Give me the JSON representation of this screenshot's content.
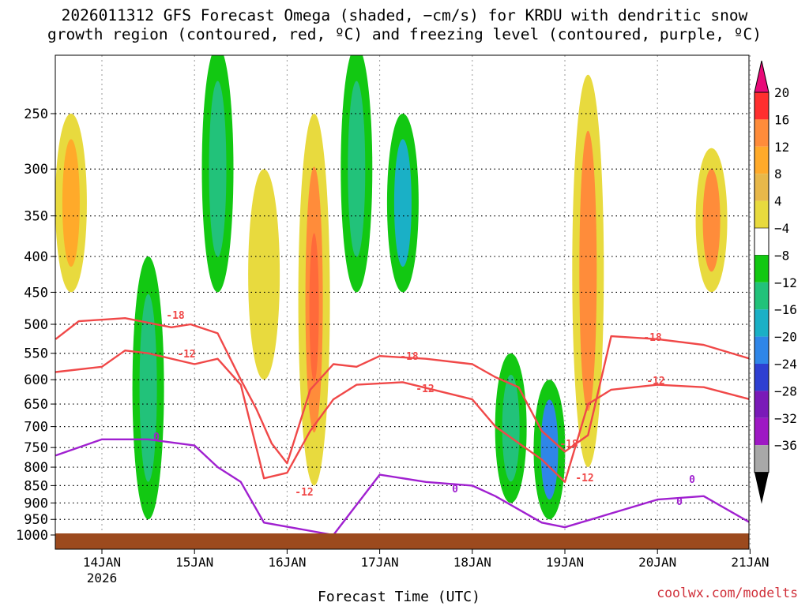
{
  "title_line1": "2026011312 GFS Forecast Omega (shaded, −cm/s) for KRDU with dendritic snow",
  "title_line2": "growth region (contoured, red, ºC) and freezing level (contoured, purple, ºC)",
  "credit": "coolwx.com/modelts",
  "chart_data": {
    "type": "heatmap",
    "title": "2026011312 GFS Forecast Omega (shaded, −cm/s) for KRDU with dendritic snow growth region (contoured, red, ºC) and freezing level (contoured, purple, ºC)",
    "xlabel": "Forecast Time (UTC)",
    "ylabel": "",
    "x_ticks": [
      "14JAN",
      "15JAN",
      "16JAN",
      "17JAN",
      "18JAN",
      "19JAN",
      "20JAN",
      "21JAN"
    ],
    "x_tick_sub": "2026",
    "y_ticks": [
      250,
      300,
      350,
      400,
      450,
      500,
      550,
      600,
      650,
      700,
      750,
      800,
      850,
      900,
      950,
      1000
    ],
    "y_scale": "log-pressure (inverted)",
    "grid": true,
    "colorbar": {
      "labels": [
        "20",
        "16",
        "12",
        "8",
        "4",
        "−4",
        "−8",
        "−12",
        "−16",
        "−20",
        "−24",
        "−28",
        "−32",
        "−36"
      ],
      "colors": [
        "#ff2f2f",
        "#ff8c3a",
        "#ffaa2a",
        "#e8b84a",
        "#e8da3e",
        "#ffffff",
        "#12c812",
        "#22c27a",
        "#1ab0c6",
        "#2f86e8",
        "#2e3fd2",
        "#7a1ab8",
        "#9e18c4",
        "#a8a8a8"
      ],
      "top_color": "#e80a78",
      "bottom_color": "#000000"
    },
    "shaded_regions": [
      {
        "time": "13JAN 16Z",
        "p_top": 250,
        "p_bot": 450,
        "value": 8
      },
      {
        "time": "14JAN 12Z",
        "p_top": 400,
        "p_bot": 950,
        "value": -10
      },
      {
        "time": "15JAN 06Z",
        "p_top": 200,
        "p_bot": 450,
        "value": -8
      },
      {
        "time": "15JAN 18Z",
        "p_top": 300,
        "p_bot": 600,
        "value": 6
      },
      {
        "time": "16JAN 07Z",
        "p_top": 250,
        "p_bot": 850,
        "value": 14
      },
      {
        "time": "16JAN 18Z",
        "p_top": 200,
        "p_bot": 450,
        "value": -8
      },
      {
        "time": "17JAN 06Z",
        "p_top": 250,
        "p_bot": 450,
        "value": -12
      },
      {
        "time": "18JAN 10Z",
        "p_top": 550,
        "p_bot": 900,
        "value": -10
      },
      {
        "time": "18JAN 20Z",
        "p_top": 600,
        "p_bot": 950,
        "value": -18
      },
      {
        "time": "19JAN 06Z",
        "p_top": 220,
        "p_bot": 800,
        "value": 12
      },
      {
        "time": "20JAN 14Z",
        "p_top": 280,
        "p_bot": 450,
        "value": 12
      }
    ],
    "contours": [
      {
        "name": "-18",
        "color": "#f04848",
        "points": [
          [
            "13JAN 12Z",
            525
          ],
          [
            "13JAN 18Z",
            495
          ],
          [
            "14JAN 06Z",
            490
          ],
          [
            "14JAN 18Z",
            505
          ],
          [
            "14JAN 23Z",
            500
          ],
          [
            "15JAN 06Z",
            515
          ],
          [
            "15JAN 12Z",
            600
          ],
          [
            "15JAN 16Z",
            660
          ],
          [
            "15JAN 20Z",
            740
          ],
          [
            "16JAN 00Z",
            790
          ],
          [
            "16JAN 06Z",
            620
          ],
          [
            "16JAN 12Z",
            570
          ],
          [
            "16JAN 18Z",
            575
          ],
          [
            "17JAN 00Z",
            555
          ],
          [
            "17JAN 12Z",
            560
          ],
          [
            "18JAN 00Z",
            570
          ],
          [
            "18JAN 06Z",
            595
          ],
          [
            "18JAN 12Z",
            615
          ],
          [
            "18JAN 18Z",
            710
          ],
          [
            "19JAN 00Z",
            760
          ],
          [
            "19JAN 06Z",
            720
          ],
          [
            "19JAN 12Z",
            520
          ],
          [
            "20JAN 00Z",
            525
          ],
          [
            "20JAN 12Z",
            535
          ],
          [
            "21JAN 00Z",
            560
          ]
        ]
      },
      {
        "name": "-12",
        "color": "#f04848",
        "points": [
          [
            "13JAN 12Z",
            585
          ],
          [
            "14JAN 00Z",
            575
          ],
          [
            "14JAN 06Z",
            545
          ],
          [
            "14JAN 12Z",
            550
          ],
          [
            "15JAN 00Z",
            570
          ],
          [
            "15JAN 06Z",
            560
          ],
          [
            "15JAN 12Z",
            610
          ],
          [
            "15JAN 18Z",
            830
          ],
          [
            "16JAN 00Z",
            815
          ],
          [
            "16JAN 06Z",
            710
          ],
          [
            "16JAN 12Z",
            640
          ],
          [
            "16JAN 18Z",
            610
          ],
          [
            "17JAN 06Z",
            605
          ],
          [
            "18JAN 00Z",
            640
          ],
          [
            "18JAN 06Z",
            700
          ],
          [
            "18JAN 18Z",
            780
          ],
          [
            "19JAN 00Z",
            840
          ],
          [
            "19JAN 06Z",
            650
          ],
          [
            "19JAN 12Z",
            620
          ],
          [
            "20JAN 00Z",
            610
          ],
          [
            "20JAN 12Z",
            615
          ],
          [
            "21JAN 00Z",
            640
          ]
        ]
      },
      {
        "name": "0",
        "color": "#a020d0",
        "points": [
          [
            "13JAN 12Z",
            770
          ],
          [
            "14JAN 00Z",
            730
          ],
          [
            "14JAN 12Z",
            730
          ],
          [
            "15JAN 00Z",
            745
          ],
          [
            "15JAN 06Z",
            800
          ],
          [
            "15JAN 12Z",
            840
          ],
          [
            "15JAN 18Z",
            960
          ],
          [
            "16JAN 12Z",
            1000
          ],
          [
            "17JAN 00Z",
            820
          ],
          [
            "17JAN 12Z",
            840
          ],
          [
            "18JAN 00Z",
            850
          ],
          [
            "18JAN 06Z",
            880
          ],
          [
            "18JAN 18Z",
            960
          ],
          [
            "19JAN 00Z",
            975
          ],
          [
            "20JAN 00Z",
            890
          ],
          [
            "20JAN 12Z",
            880
          ],
          [
            "21JAN 00Z",
            960
          ]
        ]
      }
    ],
    "contour_labels": [
      "-18",
      "-12",
      "-12",
      "-18",
      "-12",
      "-18",
      "-12",
      "-18",
      "-12",
      "0",
      "0",
      "0",
      "0"
    ]
  }
}
